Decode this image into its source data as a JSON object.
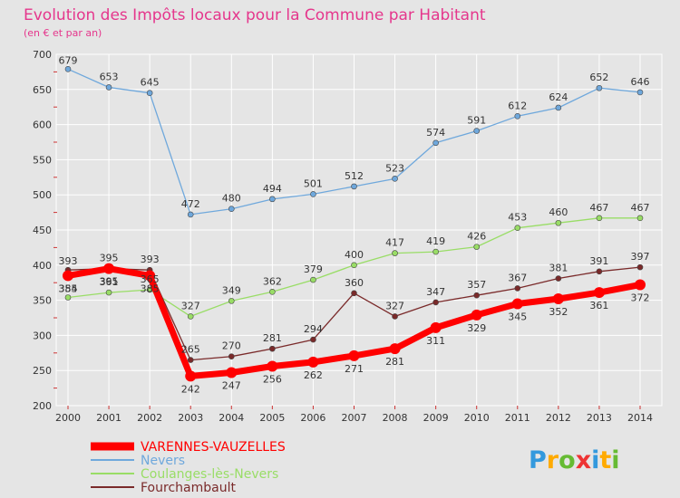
{
  "chart_data": {
    "type": "line",
    "title": "Evolution des Impôts locaux pour la Commune par Habitant",
    "subtitle": "(en € et par an)",
    "x": [
      2000,
      2001,
      2002,
      2003,
      2004,
      2005,
      2006,
      2007,
      2008,
      2009,
      2010,
      2011,
      2012,
      2013,
      2014
    ],
    "ylim": [
      200,
      700
    ],
    "yticks": [
      200,
      250,
      300,
      350,
      400,
      450,
      500,
      550,
      600,
      650,
      700
    ],
    "grid": true,
    "legend_position": "bottom-left",
    "series": [
      {
        "name": "VARENNES-VAUZELLES",
        "color": "#ff0000",
        "values": [
          385,
          395,
          385,
          242,
          247,
          256,
          262,
          271,
          281,
          311,
          329,
          345,
          352,
          361,
          372
        ]
      },
      {
        "name": "Nevers",
        "color": "#6fa8dc",
        "values": [
          679,
          653,
          645,
          472,
          480,
          494,
          501,
          512,
          523,
          574,
          591,
          612,
          624,
          652,
          646
        ]
      },
      {
        "name": "Coulanges-lès-Nevers",
        "color": "#99dd66",
        "values": [
          354,
          361,
          365,
          327,
          349,
          362,
          379,
          400,
          417,
          419,
          426,
          453,
          460,
          467,
          467
        ]
      },
      {
        "name": "Fourchambault",
        "color": "#7a2a2a",
        "values": [
          393,
          395,
          393,
          265,
          270,
          281,
          294,
          360,
          327,
          347,
          357,
          367,
          381,
          391,
          397
        ]
      }
    ]
  },
  "logo": {
    "text": "Proxiti",
    "colors": [
      "#3399dd",
      "#ffaa00",
      "#66bb33",
      "#ee3333",
      "#3399dd",
      "#ffaa00",
      "#66bb33"
    ]
  }
}
